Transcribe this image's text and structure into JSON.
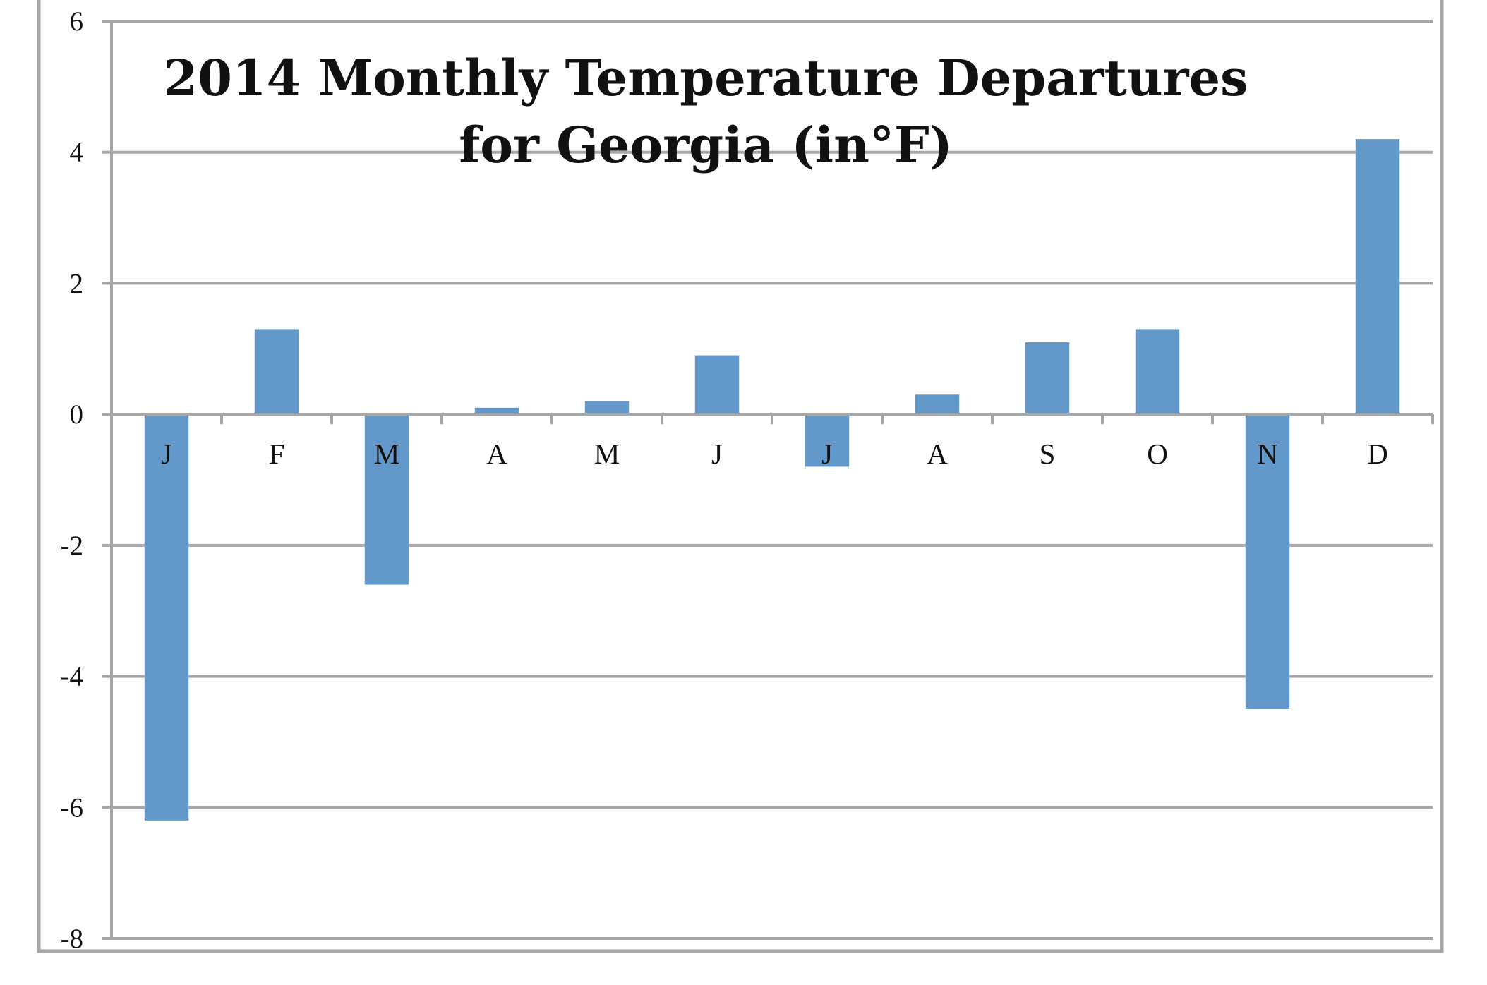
{
  "chart_data": {
    "type": "bar",
    "title_line1": "2014 Monthly Temperature Departures",
    "title_line2": "for Georgia (in°F)",
    "xlabel": "",
    "ylabel": "",
    "categories": [
      "J",
      "F",
      "M",
      "A",
      "M",
      "J",
      "J",
      "A",
      "S",
      "O",
      "N",
      "D"
    ],
    "values": [
      -6.2,
      1.3,
      -2.6,
      0.1,
      0.2,
      0.9,
      -0.8,
      0.3,
      1.1,
      1.3,
      -4.5,
      4.2
    ],
    "ylim": [
      -8,
      6
    ],
    "yticks": [
      6,
      4,
      2,
      0,
      -2,
      -4,
      -6,
      -8
    ],
    "grid": true,
    "legend": "none",
    "colors": {
      "bar": "#6398CB",
      "grid": "#A6A6A6",
      "frame": "#A6A6A6"
    }
  }
}
